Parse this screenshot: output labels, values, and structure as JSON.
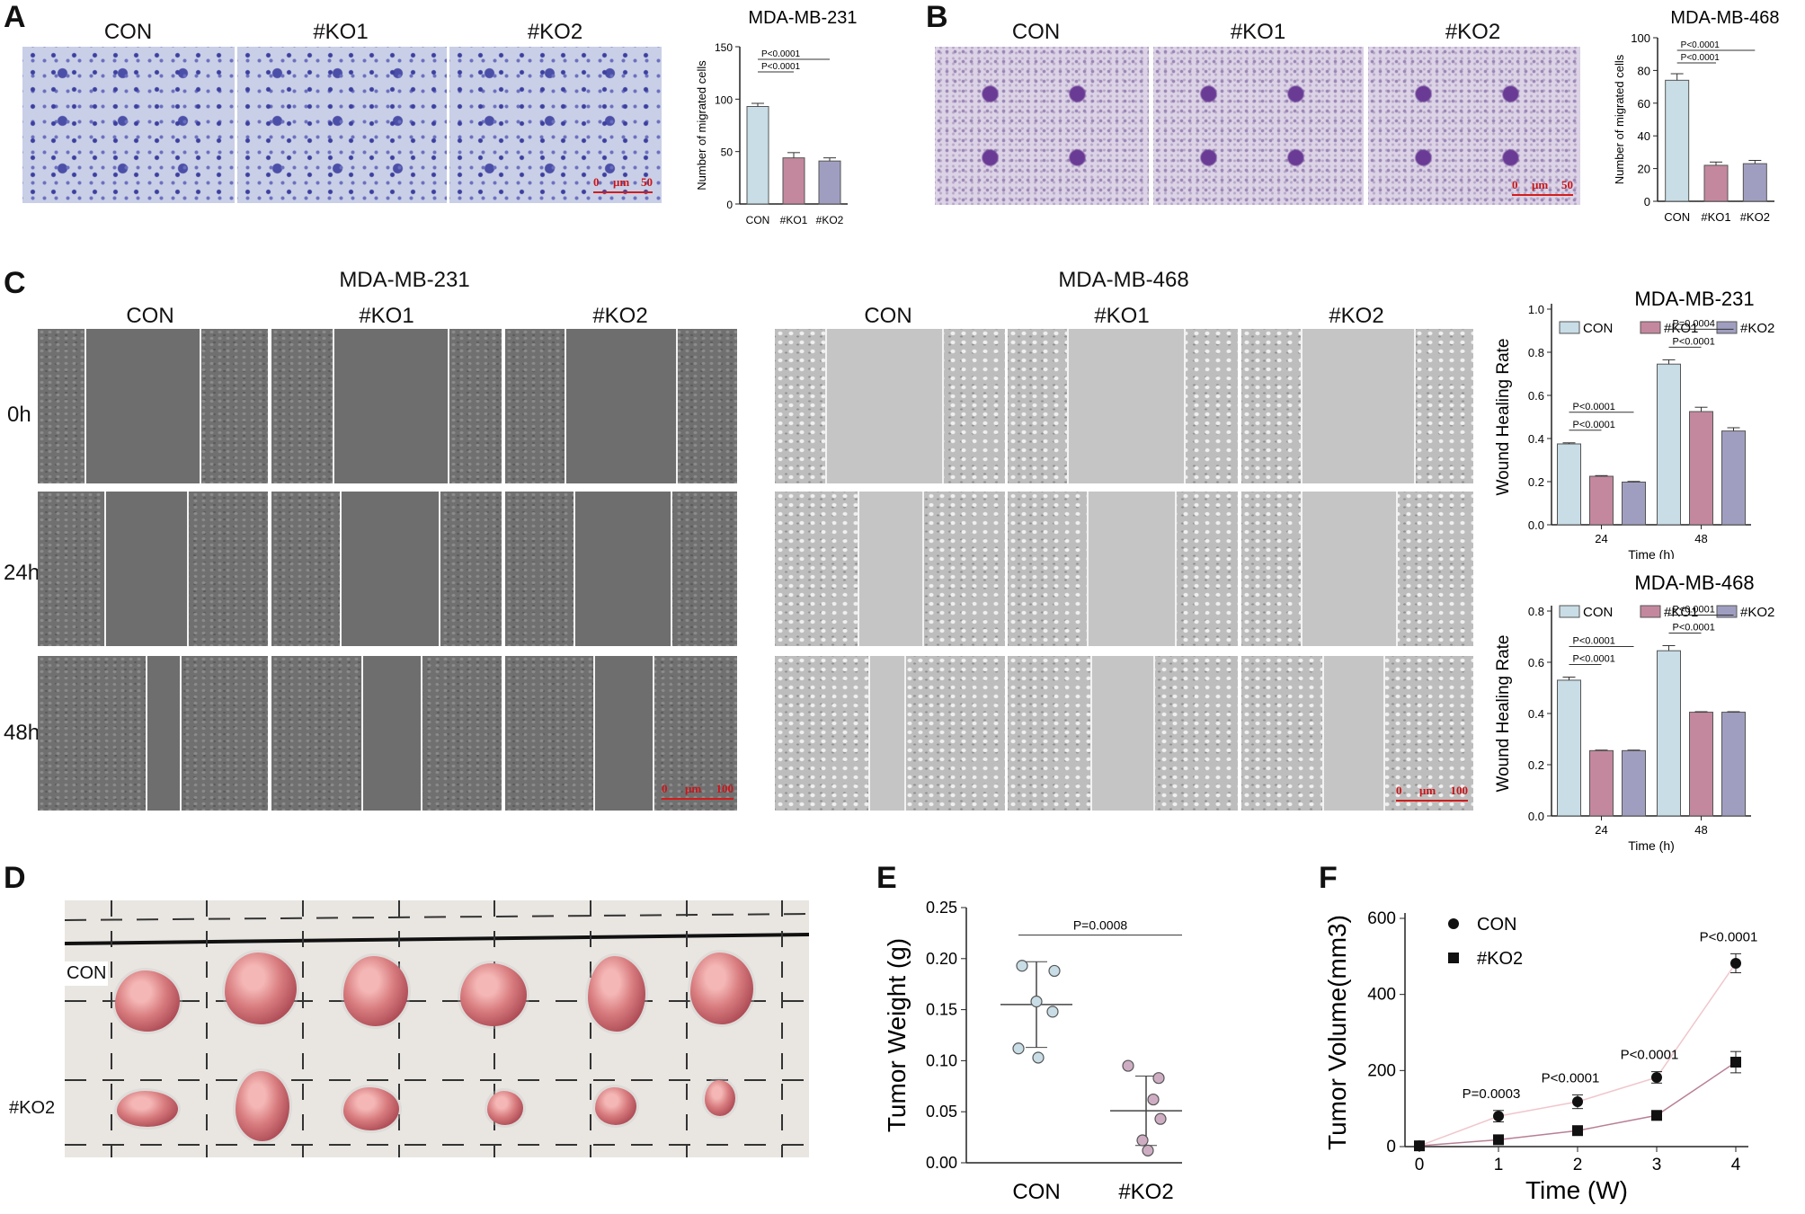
{
  "panel_a": {
    "letter": "A",
    "labels": [
      "CON",
      "#KO1",
      "#KO2"
    ],
    "scale": {
      "left": "0",
      "mid": "μm",
      "right": "50"
    },
    "chart_title": "MDA-MB-231"
  },
  "panel_b": {
    "letter": "B",
    "labels": [
      "CON",
      "#KO1",
      "#KO2"
    ],
    "scale": {
      "left": "0",
      "mid": "μm",
      "right": "50"
    },
    "chart_title": "MDA-MB-468"
  },
  "panel_c": {
    "letter": "C",
    "group1": "MDA-MB-231",
    "group2": "MDA-MB-468",
    "labels": [
      "CON",
      "#KO1",
      "#KO2"
    ],
    "rows": [
      "0h",
      "24h",
      "48h"
    ],
    "scale": {
      "left": "0",
      "mid": "μm",
      "right": "100"
    }
  },
  "panel_d": {
    "letter": "D",
    "row1": "CON",
    "row2": "#KO2"
  },
  "panel_e": {
    "letter": "E"
  },
  "panel_f": {
    "letter": "F"
  },
  "colors": {
    "con": "#c8dde6",
    "ko1": "#c4889e",
    "ko2": "#a09ec0",
    "purple_dot": "#ceadc2"
  },
  "chart_data": [
    {
      "id": "A-migration",
      "type": "bar",
      "title": "MDA-MB-231",
      "ylabel": "Number of migrated cells",
      "categories": [
        "CON",
        "#KO1",
        "#KO2"
      ],
      "values": [
        93,
        44,
        41
      ],
      "errors": [
        3,
        5,
        3
      ],
      "ylim": [
        0,
        150
      ],
      "yticks": [
        "0",
        "50",
        "100",
        "150"
      ],
      "pvalues": [
        {
          "label": "P<0.0001",
          "from": 0,
          "to": 1
        },
        {
          "label": "P<0.0001",
          "from": 0,
          "to": 2
        }
      ]
    },
    {
      "id": "B-migration",
      "type": "bar",
      "title": "MDA-MB-468",
      "ylabel": "Number of migrated cells",
      "categories": [
        "CON",
        "#KO1",
        "#KO2"
      ],
      "values": [
        74,
        22,
        23
      ],
      "errors": [
        4,
        2,
        2
      ],
      "ylim": [
        0,
        100
      ],
      "yticks": [
        "0",
        "20",
        "40",
        "60",
        "80",
        "100"
      ],
      "pvalues": [
        {
          "label": "P<0.0001",
          "from": 0,
          "to": 1
        },
        {
          "label": "P<0.0001",
          "from": 0,
          "to": 2
        }
      ]
    },
    {
      "id": "C-wound-231",
      "type": "bar",
      "title": "MDA-MB-231",
      "ylabel": "Wound Healing Rate",
      "xlabel": "Time (h)",
      "categories": [
        "24",
        "48"
      ],
      "series": [
        {
          "name": "CON",
          "values": [
            0.375,
            0.745
          ],
          "errors": [
            0.005,
            0.02
          ]
        },
        {
          "name": "#KO1",
          "values": [
            0.225,
            0.525
          ],
          "errors": [
            0.003,
            0.02
          ]
        },
        {
          "name": "#KO2",
          "values": [
            0.198,
            0.435
          ],
          "errors": [
            0.003,
            0.015
          ]
        }
      ],
      "ylim": [
        0,
        1.0
      ],
      "yticks": [
        "0.0",
        "0.2",
        "0.4",
        "0.6",
        "0.8",
        "1.0"
      ],
      "pvalues": [
        {
          "label": "P<0.0001",
          "group": 0,
          "from": 0,
          "to": 1
        },
        {
          "label": "P<0.0001",
          "group": 0,
          "from": 0,
          "to": 2
        },
        {
          "label": "P<0.0001",
          "group": 1,
          "from": 0,
          "to": 1
        },
        {
          "label": "P=0.0004",
          "group": 1,
          "from": 0,
          "to": 2
        }
      ]
    },
    {
      "id": "C-wound-468",
      "type": "bar",
      "title": "MDA-MB-468",
      "ylabel": "Wound Healing Rate",
      "xlabel": "Time (h)",
      "categories": [
        "24",
        "48"
      ],
      "series": [
        {
          "name": "CON",
          "values": [
            0.53,
            0.645
          ],
          "errors": [
            0.012,
            0.02
          ]
        },
        {
          "name": "#KO1",
          "values": [
            0.255,
            0.405
          ],
          "errors": [
            0.002,
            0.002
          ]
        },
        {
          "name": "#KO2",
          "values": [
            0.255,
            0.405
          ],
          "errors": [
            0.002,
            0.002
          ]
        }
      ],
      "ylim": [
        0,
        0.8
      ],
      "yticks": [
        "0.0",
        "0.2",
        "0.4",
        "0.6",
        "0.8"
      ],
      "pvalues": [
        {
          "label": "P<0.0001",
          "group": 0,
          "from": 0,
          "to": 1
        },
        {
          "label": "P<0.0001",
          "group": 0,
          "from": 0,
          "to": 2
        },
        {
          "label": "P<0.0001",
          "group": 1,
          "from": 0,
          "to": 1
        },
        {
          "label": "P<0.0001",
          "group": 1,
          "from": 0,
          "to": 2
        }
      ]
    },
    {
      "id": "E-weight",
      "type": "scatter",
      "ylabel": "Tumor Weight (g)",
      "categories": [
        "CON",
        "#KO2"
      ],
      "points": [
        [
          0.193,
          0.188,
          0.158,
          0.112,
          0.103,
          0.148
        ],
        [
          0.095,
          0.083,
          0.062,
          0.022,
          0.012,
          0.043
        ]
      ],
      "means": [
        0.155,
        0.051
      ],
      "sd": [
        0.042,
        0.034
      ],
      "ylim": [
        0,
        0.25
      ],
      "yticks": [
        "0.00",
        "0.05",
        "0.10",
        "0.15",
        "0.20",
        "0.25"
      ],
      "pvalue": "P=0.0008"
    },
    {
      "id": "F-volume",
      "type": "line",
      "xlabel": "Time (W)",
      "ylabel": "Tumor Volume(mm3)",
      "x": [
        0,
        1,
        2,
        3,
        4
      ],
      "series": [
        {
          "name": "CON",
          "values": [
            2,
            80,
            118,
            182,
            482
          ],
          "errors": [
            0,
            15,
            18,
            15,
            25
          ]
        },
        {
          "name": "#KO2",
          "values": [
            2,
            18,
            42,
            82,
            222
          ],
          "errors": [
            0,
            3,
            4,
            5,
            28
          ]
        }
      ],
      "ylim": [
        0,
        600
      ],
      "yticks": [
        "0",
        "200",
        "400",
        "600"
      ],
      "xticks": [
        "0",
        "1",
        "2",
        "3",
        "4"
      ],
      "pvalues": [
        "P=0.0003",
        "P<0.0001",
        "P<0.0001",
        "P<0.0001"
      ]
    }
  ]
}
